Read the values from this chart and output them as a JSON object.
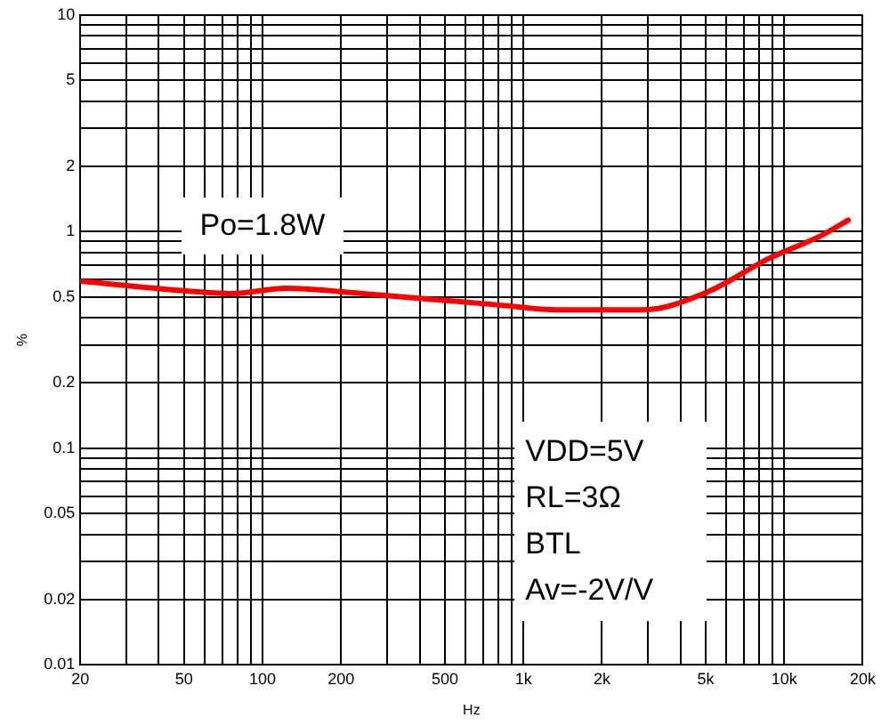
{
  "chart_data": {
    "type": "line",
    "xlabel": "Hz",
    "ylabel": "%",
    "log": "xy",
    "grid": true,
    "legend": false,
    "marker": "none",
    "line_style": "solid",
    "x": [
      20,
      53,
      76,
      123,
      242,
      776,
      1368,
      2880,
      5140,
      8650,
      13900,
      17600
    ],
    "series": [
      {
        "color": "#ff0000",
        "values": [
          0.59,
          0.53,
          0.517,
          0.547,
          0.517,
          0.46,
          0.435,
          0.435,
          0.53,
          0.747,
          0.96,
          1.13
        ]
      }
    ],
    "xlim": [
      20,
      20000
    ],
    "ylim": [
      0.01,
      10
    ],
    "xticks": [
      20,
      {
        "value": 30,
        "label": null
      },
      {
        "value": 40,
        "label": null
      },
      50,
      {
        "value": 60,
        "label": null
      },
      {
        "value": 70,
        "label": null
      },
      {
        "value": 80,
        "label": null
      },
      {
        "value": 90,
        "label": null
      },
      100,
      200,
      {
        "value": 300,
        "label": null
      },
      {
        "value": 400,
        "label": null
      },
      500,
      {
        "value": 600,
        "label": null
      },
      {
        "value": 700,
        "label": null
      },
      {
        "value": 800,
        "label": null
      },
      {
        "value": 900,
        "label": null
      },
      {
        "value": 1000,
        "label": "1k"
      },
      {
        "value": 2000,
        "label": "2k"
      },
      {
        "value": 3000,
        "label": null
      },
      {
        "value": 4000,
        "label": null
      },
      {
        "value": 5000,
        "label": "5k"
      },
      {
        "value": 6000,
        "label": null
      },
      {
        "value": 7000,
        "label": null
      },
      {
        "value": 8000,
        "label": null
      },
      {
        "value": 9000,
        "label": null
      },
      {
        "value": 10000,
        "label": "10k"
      },
      {
        "value": 20000,
        "label": "20k"
      }
    ],
    "yticks": [
      0.01,
      0.02,
      {
        "value": 0.03,
        "label": null
      },
      {
        "value": 0.04,
        "label": null
      },
      0.05,
      {
        "value": 0.06,
        "label": null
      },
      {
        "value": 0.07,
        "label": null
      },
      {
        "value": 0.08,
        "label": null
      },
      {
        "value": 0.09,
        "label": null
      },
      0.1,
      0.2,
      {
        "value": 0.3,
        "label": null
      },
      {
        "value": 0.4,
        "label": null
      },
      0.5,
      {
        "value": 0.6,
        "label": null
      },
      {
        "value": 0.7,
        "label": null
      },
      {
        "value": 0.8,
        "label": null
      },
      {
        "value": 0.9,
        "label": null
      },
      1,
      2,
      {
        "value": 3,
        "label": null
      },
      {
        "value": 4,
        "label": null
      },
      5,
      {
        "value": 6,
        "label": null
      },
      {
        "value": 7,
        "label": null
      },
      {
        "value": 8,
        "label": null
      },
      {
        "value": 9,
        "label": null
      },
      10
    ],
    "annotations": [
      "Po=1.8W",
      "VDD=5V",
      "RL=3Ω",
      "BTL",
      "Av=-2V/V"
    ]
  }
}
